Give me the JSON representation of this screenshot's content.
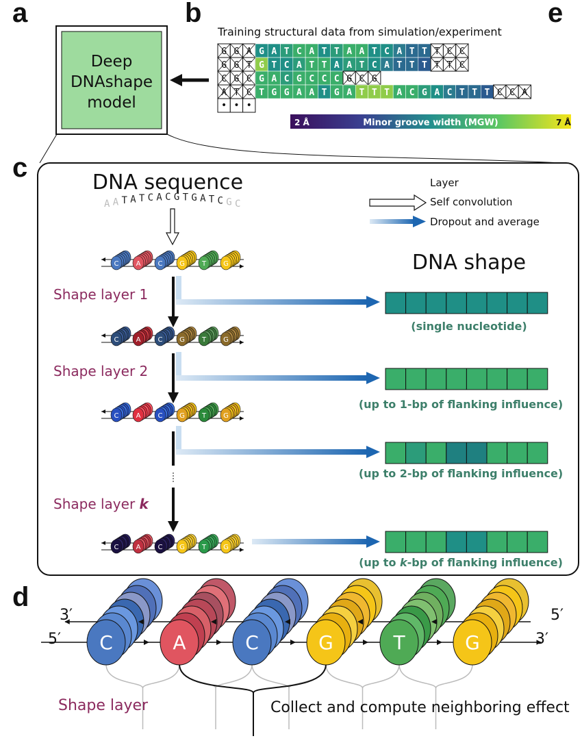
{
  "panels": {
    "a": "a",
    "b": "b",
    "c": "c",
    "d": "d",
    "e": "e"
  },
  "model": {
    "line1": "Deep",
    "line2": "DNAshape",
    "line3": "model"
  },
  "b": {
    "title": "Training structural data from simulation/experiment",
    "dots": "•",
    "colorbar": {
      "min": "2 Å",
      "label": "Minor groove width (MGW)",
      "max": "7 Å"
    },
    "rows": [
      [
        "G",
        "G",
        "A",
        "G",
        "A",
        "T",
        "C",
        "A",
        "T",
        "T",
        "A",
        "A",
        "T",
        "C",
        "A",
        "T",
        "T",
        "T",
        "C",
        "C"
      ],
      [
        "G",
        "G",
        "T",
        "G",
        "T",
        "C",
        "A",
        "T",
        "T",
        "A",
        "A",
        "T",
        "C",
        "A",
        "T",
        "T",
        "T",
        "T",
        "T",
        "C"
      ],
      [
        "C",
        "G",
        "C",
        "G",
        "A",
        "C",
        "G",
        "C",
        "C",
        "C",
        "G",
        "C",
        "G"
      ],
      [
        "A",
        "T",
        "C",
        "T",
        "G",
        "G",
        "A",
        "A",
        "T",
        "G",
        "A",
        "T",
        "T",
        "T",
        "A",
        "C",
        "G",
        "A",
        "C",
        "T",
        "T",
        "T",
        "C",
        "C",
        "A"
      ]
    ],
    "colors": {
      "dark1": "#2b6a8f",
      "teal": "#1f8f86",
      "green": "#3aae6a",
      "lime": "#8fcc4a",
      "mid": "#2c9c7a"
    }
  },
  "c": {
    "dna_sequence_title": "DNA sequence",
    "sequence": "AATATCACGTGATCGC",
    "legend": {
      "layer": "Layer",
      "self_conv": "Self convolution",
      "dropout": "Dropout and average"
    },
    "dna_shape_title": "DNA shape",
    "layers": [
      {
        "label": "Shape layer 1",
        "caption": "(single nucleotide)"
      },
      {
        "label": "Shape layer 2",
        "caption": "(up to 1-bp of flanking influence)"
      },
      {
        "label": "",
        "caption": "(up to 2-bp of flanking influence)"
      },
      {
        "label": "Shape layer k",
        "caption": "(up to k-bp of flanking influence)"
      }
    ],
    "bases": [
      "C",
      "A",
      "C",
      "G",
      "T",
      "G"
    ]
  },
  "d": {
    "bases": [
      "C",
      "A",
      "C",
      "G",
      "T",
      "G"
    ],
    "left_top": "3′",
    "left_bottom": "5′",
    "right_top": "5′",
    "right_bottom": "3′",
    "shape_layer": "Shape layer",
    "collect": "Collect and compute neighboring effect"
  },
  "base_colors": {
    "C": "#4a78c0",
    "A": "#e05560",
    "G": "#f5c518",
    "T": "#4faa55"
  }
}
